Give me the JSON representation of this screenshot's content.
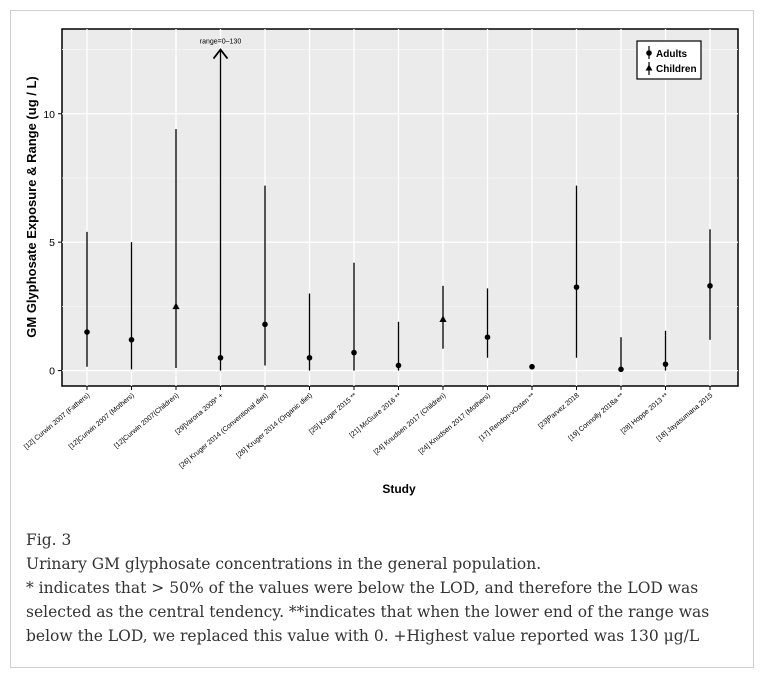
{
  "chart_data": {
    "type": "range-plot",
    "ylabel": "GM Glyphosate Exposure & Range (ug / L)",
    "xlabel": "Study",
    "ylim": [
      -0.6,
      13.3
    ],
    "yticks": [
      0,
      5,
      10
    ],
    "grid": true,
    "legend": {
      "placement": "top-right",
      "entries": [
        {
          "label": "Adults",
          "marker": "circle"
        },
        {
          "label": "Children",
          "marker": "triangle"
        }
      ]
    },
    "studies": [
      {
        "label": "[12] Curwin 2007 (Fathers)",
        "group": "Adults",
        "value": 1.5,
        "low": 0.15,
        "high": 5.4
      },
      {
        "label": "[12]Curwin 2007 (Mothers)",
        "group": "Adults",
        "value": 1.2,
        "low": 0.05,
        "high": 5.0
      },
      {
        "label": "[12]Curwin 2007(Children)",
        "group": "Children",
        "value": 2.5,
        "low": 0.1,
        "high": 9.4
      },
      {
        "label": "[29]Varona 2009* +",
        "group": "Adults",
        "value": 0.5,
        "low": 0.0,
        "high": 12.5
      },
      {
        "label": "[26] Kruger 2014 (Conventional diet)",
        "group": "Adults",
        "value": 1.8,
        "low": 0.2,
        "high": 7.2
      },
      {
        "label": "[26] Kruger 2014 (Organic diet)",
        "group": "Adults",
        "value": 0.5,
        "low": 0.0,
        "high": 3.0
      },
      {
        "label": "[25] Kruger 2015 **",
        "group": "Adults",
        "value": 0.7,
        "low": 0.0,
        "high": 4.2
      },
      {
        "label": "[21] McGuire 2016 **",
        "group": "Adults",
        "value": 0.2,
        "low": 0.0,
        "high": 1.9
      },
      {
        "label": "[24] Knudsen 2017 (Children)",
        "group": "Children",
        "value": 2.0,
        "low": 0.85,
        "high": 3.3
      },
      {
        "label": "[24] Knudsen 2017 (Mothers)",
        "group": "Adults",
        "value": 1.3,
        "low": 0.5,
        "high": 3.2
      },
      {
        "label": "[17] Rendon-vOsten **",
        "group": "Adults",
        "value": 0.15,
        "low": null,
        "high": null
      },
      {
        "label": "[23]Parvez 2018",
        "group": "Adults",
        "value": 3.25,
        "low": 0.5,
        "high": 7.2
      },
      {
        "label": "[19] Connolly 2018a **",
        "group": "Adults",
        "value": 0.05,
        "low": 0.0,
        "high": 1.3
      },
      {
        "label": "[28] Hoppe 2013 **",
        "group": "Adults",
        "value": 0.25,
        "low": 0.0,
        "high": 1.55
      },
      {
        "label": "[18] Jayasumana 2015",
        "group": "Adults",
        "value": 3.3,
        "low": 1.2,
        "high": 5.5
      }
    ],
    "annotations": [
      {
        "text": "range=0–130",
        "study_index": 3,
        "type": "arrow-up"
      }
    ]
  },
  "caption": {
    "label": "Fig. 3",
    "title": "Urinary GM glyphosate concentrations in the general population.",
    "note": "* indicates that > 50% of the values were below the LOD, and therefore the LOD was selected as the central tendency. **indicates that when the lower end of the range was below the LOD, we replaced this value with 0. +Highest value reported was 130 μg/L"
  }
}
